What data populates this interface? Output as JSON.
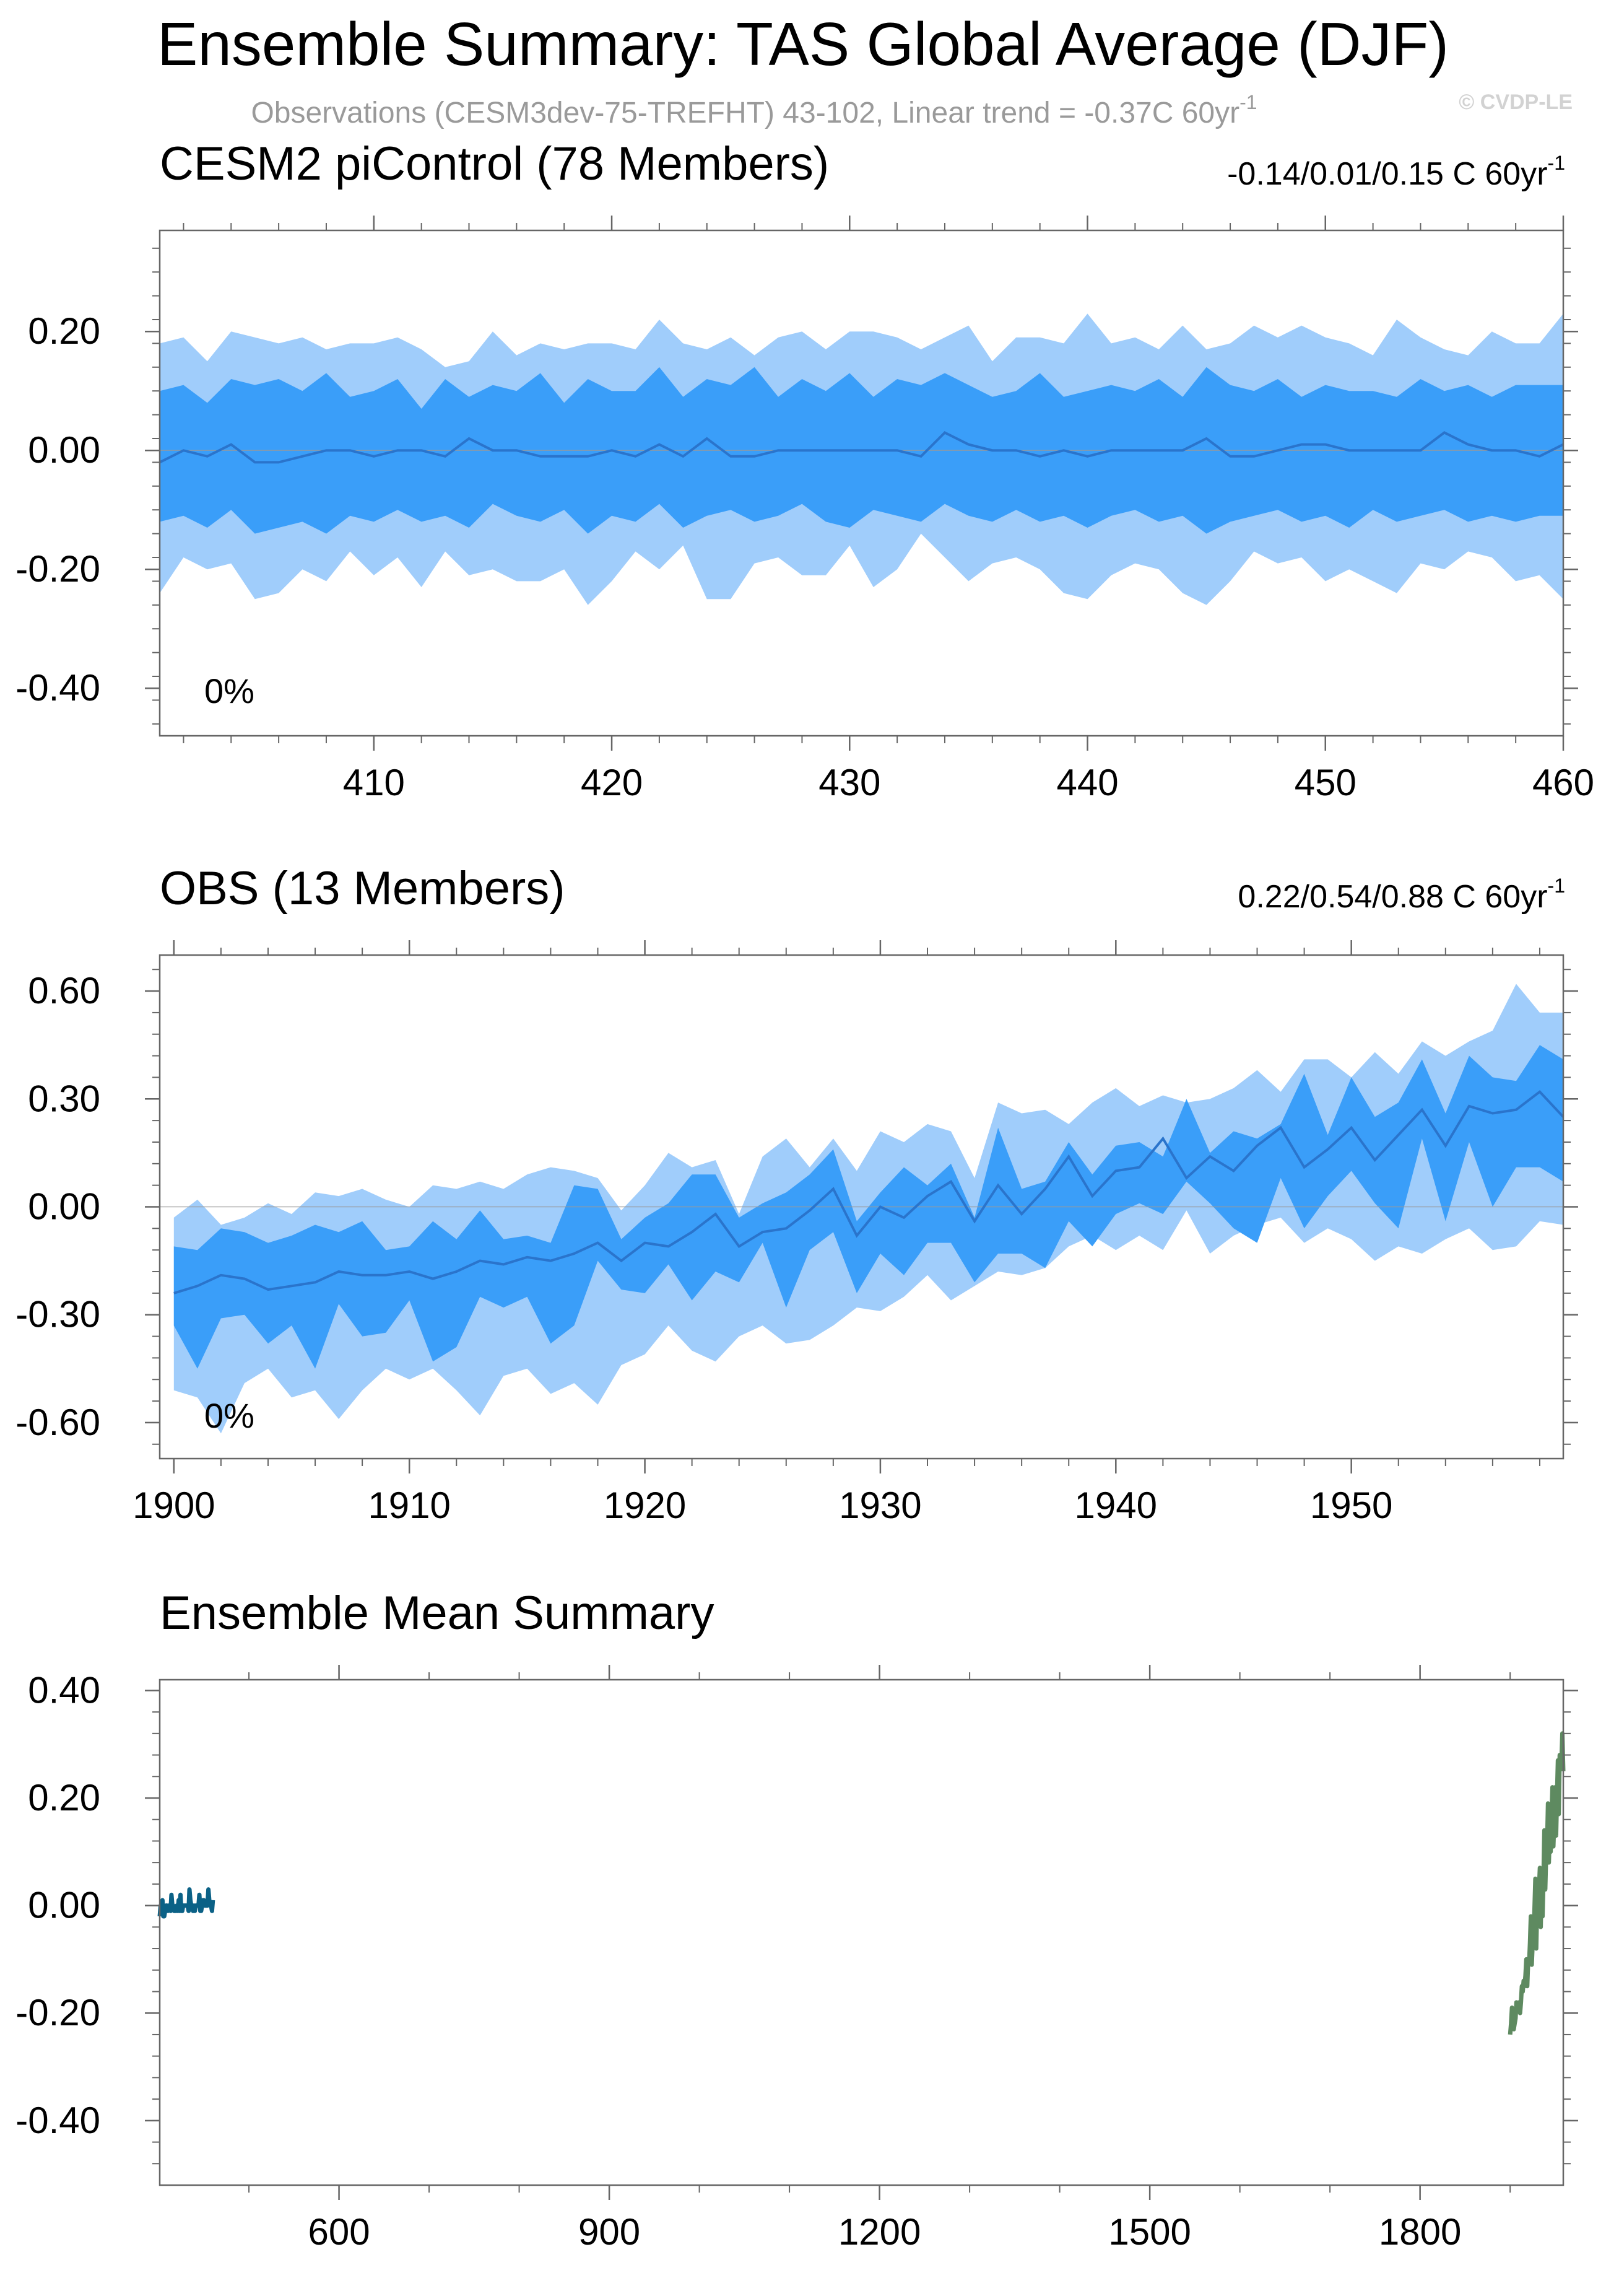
{
  "title": "Ensemble Summary: TAS Global Average (DJF)",
  "subtitle": "Observations (CESM3dev-75-TREFHT) 43-102, Linear trend = -0.37C 60yr",
  "subtitle_sup": "-1",
  "copyright": "© CVDP-LE",
  "colors": {
    "outer_band": "#a0cdfb",
    "inner_band": "#3a9ef9",
    "mean_line": "#2a74cc",
    "pi_title": "#0b6186",
    "obs_title": "#5e8a60",
    "axis": "#666666"
  },
  "chart_data": [
    {
      "type": "area",
      "id": "picontrol",
      "title": "CESM2 piControl (78 Members)",
      "trend_label": "-0.14/0.01/0.15 C 60yr",
      "trend_sup": "-1",
      "percent_label": "0%",
      "xlim": [
        401,
        460
      ],
      "ylim": [
        -0.48,
        0.37
      ],
      "xticks": [
        410,
        420,
        430,
        440,
        450,
        460
      ],
      "xtick_labels": [
        "410",
        "420",
        "430",
        "440",
        "450",
        "460"
      ],
      "yticks": [
        0.2,
        0.0,
        -0.2,
        -0.4
      ],
      "ytick_labels": [
        "0.20",
        "0.00",
        "-0.20",
        "-0.40"
      ],
      "x": [
        401,
        402,
        403,
        404,
        405,
        406,
        407,
        408,
        409,
        410,
        411,
        412,
        413,
        414,
        415,
        416,
        417,
        418,
        419,
        420,
        421,
        422,
        423,
        424,
        425,
        426,
        427,
        428,
        429,
        430,
        431,
        432,
        433,
        434,
        435,
        436,
        437,
        438,
        439,
        440,
        441,
        442,
        443,
        444,
        445,
        446,
        447,
        448,
        449,
        450,
        451,
        452,
        453,
        454,
        455,
        456,
        457,
        458,
        459,
        460
      ],
      "series": [
        {
          "name": "max",
          "values": [
            0.18,
            0.19,
            0.15,
            0.2,
            0.19,
            0.18,
            0.19,
            0.17,
            0.18,
            0.18,
            0.19,
            0.17,
            0.14,
            0.15,
            0.2,
            0.16,
            0.18,
            0.17,
            0.18,
            0.18,
            0.17,
            0.22,
            0.18,
            0.17,
            0.19,
            0.16,
            0.19,
            0.2,
            0.17,
            0.2,
            0.2,
            0.19,
            0.17,
            0.19,
            0.21,
            0.15,
            0.19,
            0.19,
            0.18,
            0.23,
            0.18,
            0.19,
            0.17,
            0.21,
            0.17,
            0.18,
            0.21,
            0.19,
            0.21,
            0.19,
            0.18,
            0.16,
            0.22,
            0.19,
            0.17,
            0.16,
            0.2,
            0.18,
            0.18,
            0.23
          ]
        },
        {
          "name": "p84",
          "values": [
            0.1,
            0.11,
            0.08,
            0.12,
            0.11,
            0.12,
            0.1,
            0.13,
            0.09,
            0.1,
            0.12,
            0.07,
            0.12,
            0.09,
            0.11,
            0.1,
            0.13,
            0.08,
            0.12,
            0.1,
            0.1,
            0.14,
            0.09,
            0.12,
            0.11,
            0.14,
            0.09,
            0.12,
            0.1,
            0.13,
            0.09,
            0.12,
            0.11,
            0.13,
            0.11,
            0.09,
            0.1,
            0.13,
            0.09,
            0.1,
            0.11,
            0.1,
            0.12,
            0.09,
            0.14,
            0.11,
            0.1,
            0.12,
            0.09,
            0.11,
            0.1,
            0.1,
            0.09,
            0.12,
            0.1,
            0.11,
            0.09,
            0.11,
            0.11,
            0.11
          ]
        },
        {
          "name": "mean",
          "values": [
            -0.02,
            0.0,
            -0.01,
            0.01,
            -0.02,
            -0.02,
            -0.01,
            0.0,
            0.0,
            -0.01,
            0.0,
            0.0,
            -0.01,
            0.02,
            0.0,
            0.0,
            -0.01,
            -0.01,
            -0.01,
            0.0,
            -0.01,
            0.01,
            -0.01,
            0.02,
            -0.01,
            -0.01,
            0.0,
            0.0,
            0.0,
            0.0,
            0.0,
            0.0,
            -0.01,
            0.03,
            0.01,
            0.0,
            0.0,
            -0.01,
            0.0,
            -0.01,
            0.0,
            0.0,
            0.0,
            0.0,
            0.02,
            -0.01,
            -0.01,
            0.0,
            0.01,
            0.01,
            0.0,
            0.0,
            0.0,
            0.0,
            0.03,
            0.01,
            0.0,
            0.0,
            -0.01,
            0.01
          ]
        },
        {
          "name": "p16",
          "values": [
            -0.12,
            -0.11,
            -0.13,
            -0.1,
            -0.14,
            -0.13,
            -0.12,
            -0.14,
            -0.11,
            -0.12,
            -0.1,
            -0.12,
            -0.11,
            -0.13,
            -0.09,
            -0.11,
            -0.12,
            -0.1,
            -0.14,
            -0.11,
            -0.12,
            -0.09,
            -0.13,
            -0.11,
            -0.1,
            -0.12,
            -0.11,
            -0.09,
            -0.12,
            -0.13,
            -0.1,
            -0.11,
            -0.12,
            -0.09,
            -0.11,
            -0.12,
            -0.1,
            -0.12,
            -0.11,
            -0.13,
            -0.11,
            -0.1,
            -0.12,
            -0.11,
            -0.14,
            -0.12,
            -0.11,
            -0.1,
            -0.12,
            -0.11,
            -0.13,
            -0.1,
            -0.12,
            -0.11,
            -0.1,
            -0.12,
            -0.11,
            -0.12,
            -0.11,
            -0.11
          ]
        },
        {
          "name": "min",
          "values": [
            -0.24,
            -0.18,
            -0.2,
            -0.19,
            -0.25,
            -0.24,
            -0.2,
            -0.22,
            -0.17,
            -0.21,
            -0.18,
            -0.23,
            -0.17,
            -0.21,
            -0.2,
            -0.22,
            -0.22,
            -0.2,
            -0.26,
            -0.22,
            -0.17,
            -0.2,
            -0.16,
            -0.25,
            -0.25,
            -0.19,
            -0.18,
            -0.21,
            -0.21,
            -0.16,
            -0.23,
            -0.2,
            -0.14,
            -0.18,
            -0.22,
            -0.19,
            -0.18,
            -0.2,
            -0.24,
            -0.25,
            -0.21,
            -0.19,
            -0.2,
            -0.24,
            -0.26,
            -0.22,
            -0.17,
            -0.19,
            -0.18,
            -0.22,
            -0.2,
            -0.22,
            -0.24,
            -0.19,
            -0.2,
            -0.17,
            -0.18,
            -0.22,
            -0.21,
            -0.25
          ]
        }
      ]
    },
    {
      "type": "area",
      "id": "obs",
      "title": "OBS (13 Members)",
      "trend_label": "0.22/0.54/0.88 C 60yr",
      "trend_sup": "-1",
      "percent_label": "0%",
      "xlim": [
        1899.4,
        1959
      ],
      "ylim": [
        -0.7,
        0.7
      ],
      "xticks": [
        1900,
        1910,
        1920,
        1930,
        1940,
        1950
      ],
      "xtick_labels": [
        "1900",
        "1910",
        "1920",
        "1930",
        "1940",
        "1950"
      ],
      "yticks": [
        0.6,
        0.3,
        0.0,
        -0.3,
        -0.6
      ],
      "ytick_labels": [
        "0.60",
        "0.30",
        "0.00",
        "-0.30",
        "-0.60"
      ],
      "x": [
        1900,
        1901,
        1902,
        1903,
        1904,
        1905,
        1906,
        1907,
        1908,
        1909,
        1910,
        1911,
        1912,
        1913,
        1914,
        1915,
        1916,
        1917,
        1918,
        1919,
        1920,
        1921,
        1922,
        1923,
        1924,
        1925,
        1926,
        1927,
        1928,
        1929,
        1930,
        1931,
        1932,
        1933,
        1934,
        1935,
        1936,
        1937,
        1938,
        1939,
        1940,
        1941,
        1942,
        1943,
        1944,
        1945,
        1946,
        1947,
        1948,
        1949,
        1950,
        1951,
        1952,
        1953,
        1954,
        1955,
        1956,
        1957,
        1958,
        1959
      ],
      "series": [
        {
          "name": "max",
          "values": [
            -0.03,
            0.02,
            -0.05,
            -0.03,
            0.01,
            -0.02,
            0.04,
            0.03,
            0.05,
            0.02,
            0.0,
            0.06,
            0.05,
            0.07,
            0.05,
            0.09,
            0.11,
            0.1,
            0.08,
            -0.01,
            0.06,
            0.15,
            0.11,
            0.13,
            -0.02,
            0.14,
            0.19,
            0.11,
            0.19,
            0.1,
            0.21,
            0.18,
            0.23,
            0.21,
            0.08,
            0.29,
            0.26,
            0.27,
            0.23,
            0.29,
            0.33,
            0.28,
            0.31,
            0.29,
            0.3,
            0.33,
            0.38,
            0.32,
            0.41,
            0.41,
            0.36,
            0.43,
            0.37,
            0.46,
            0.42,
            0.46,
            0.49,
            0.62,
            0.54,
            0.54
          ]
        },
        {
          "name": "p84",
          "values": [
            -0.11,
            -0.12,
            -0.06,
            -0.07,
            -0.1,
            -0.08,
            -0.05,
            -0.07,
            -0.04,
            -0.12,
            -0.11,
            -0.04,
            -0.09,
            -0.01,
            -0.09,
            -0.08,
            -0.1,
            0.06,
            0.05,
            -0.09,
            -0.03,
            0.01,
            0.09,
            0.09,
            -0.03,
            0.01,
            0.04,
            0.09,
            0.16,
            -0.04,
            0.04,
            0.11,
            0.06,
            0.12,
            -0.03,
            0.22,
            0.05,
            0.07,
            0.18,
            0.09,
            0.17,
            0.18,
            0.14,
            0.3,
            0.15,
            0.21,
            0.19,
            0.23,
            0.37,
            0.2,
            0.36,
            0.25,
            0.29,
            0.41,
            0.26,
            0.42,
            0.36,
            0.35,
            0.45,
            0.41
          ]
        },
        {
          "name": "mean",
          "values": [
            -0.24,
            -0.22,
            -0.19,
            -0.2,
            -0.23,
            -0.22,
            -0.21,
            -0.18,
            -0.19,
            -0.19,
            -0.18,
            -0.2,
            -0.18,
            -0.15,
            -0.16,
            -0.14,
            -0.15,
            -0.13,
            -0.1,
            -0.15,
            -0.1,
            -0.11,
            -0.07,
            -0.02,
            -0.11,
            -0.07,
            -0.06,
            -0.01,
            0.05,
            -0.08,
            0.0,
            -0.03,
            0.03,
            0.07,
            -0.04,
            0.06,
            -0.02,
            0.05,
            0.14,
            0.03,
            0.1,
            0.11,
            0.19,
            0.08,
            0.14,
            0.1,
            0.17,
            0.22,
            0.11,
            0.16,
            0.22,
            0.13,
            0.2,
            0.27,
            0.17,
            0.28,
            0.26,
            0.27,
            0.32,
            0.25
          ]
        },
        {
          "name": "p16",
          "values": [
            -0.33,
            -0.45,
            -0.31,
            -0.3,
            -0.38,
            -0.33,
            -0.45,
            -0.27,
            -0.36,
            -0.35,
            -0.26,
            -0.43,
            -0.39,
            -0.25,
            -0.28,
            -0.25,
            -0.38,
            -0.33,
            -0.15,
            -0.23,
            -0.24,
            -0.16,
            -0.26,
            -0.18,
            -0.21,
            -0.1,
            -0.28,
            -0.12,
            -0.07,
            -0.24,
            -0.13,
            -0.19,
            -0.1,
            -0.1,
            -0.21,
            -0.13,
            -0.13,
            -0.17,
            -0.04,
            -0.11,
            -0.02,
            0.01,
            -0.02,
            0.07,
            0.01,
            -0.06,
            -0.1,
            0.08,
            -0.06,
            0.03,
            0.1,
            0.01,
            -0.06,
            0.19,
            -0.04,
            0.18,
            0.0,
            0.11,
            0.11,
            0.07
          ]
        },
        {
          "name": "min",
          "values": [
            -0.51,
            -0.53,
            -0.63,
            -0.49,
            -0.45,
            -0.53,
            -0.51,
            -0.59,
            -0.51,
            -0.45,
            -0.48,
            -0.45,
            -0.51,
            -0.58,
            -0.47,
            -0.45,
            -0.52,
            -0.49,
            -0.55,
            -0.44,
            -0.41,
            -0.33,
            -0.4,
            -0.43,
            -0.36,
            -0.33,
            -0.38,
            -0.37,
            -0.33,
            -0.28,
            -0.29,
            -0.25,
            -0.19,
            -0.26,
            -0.22,
            -0.18,
            -0.19,
            -0.17,
            -0.11,
            -0.08,
            -0.12,
            -0.08,
            -0.12,
            -0.01,
            -0.13,
            -0.08,
            -0.05,
            -0.03,
            -0.1,
            -0.06,
            -0.09,
            -0.15,
            -0.11,
            -0.13,
            -0.09,
            -0.06,
            -0.12,
            -0.11,
            -0.04,
            -0.05
          ]
        }
      ]
    },
    {
      "type": "line",
      "id": "ens_mean",
      "title": "Ensemble Mean Summary",
      "xlim": [
        401,
        1959
      ],
      "ylim": [
        -0.52,
        0.42
      ],
      "xticks": [
        600,
        900,
        1200,
        1500,
        1800
      ],
      "xtick_labels": [
        "600",
        "900",
        "1200",
        "1500",
        "1800"
      ],
      "yticks": [
        0.4,
        0.2,
        0.0,
        -0.2,
        -0.4
      ],
      "ytick_labels": [
        "0.40",
        "0.20",
        "0.00",
        "-0.20",
        "-0.40"
      ],
      "series": [
        {
          "name": "CESM2 piControl",
          "color": "#0b6186",
          "source": "picontrol"
        },
        {
          "name": "OBS",
          "color": "#5e8a60",
          "source": "obs"
        }
      ]
    }
  ]
}
